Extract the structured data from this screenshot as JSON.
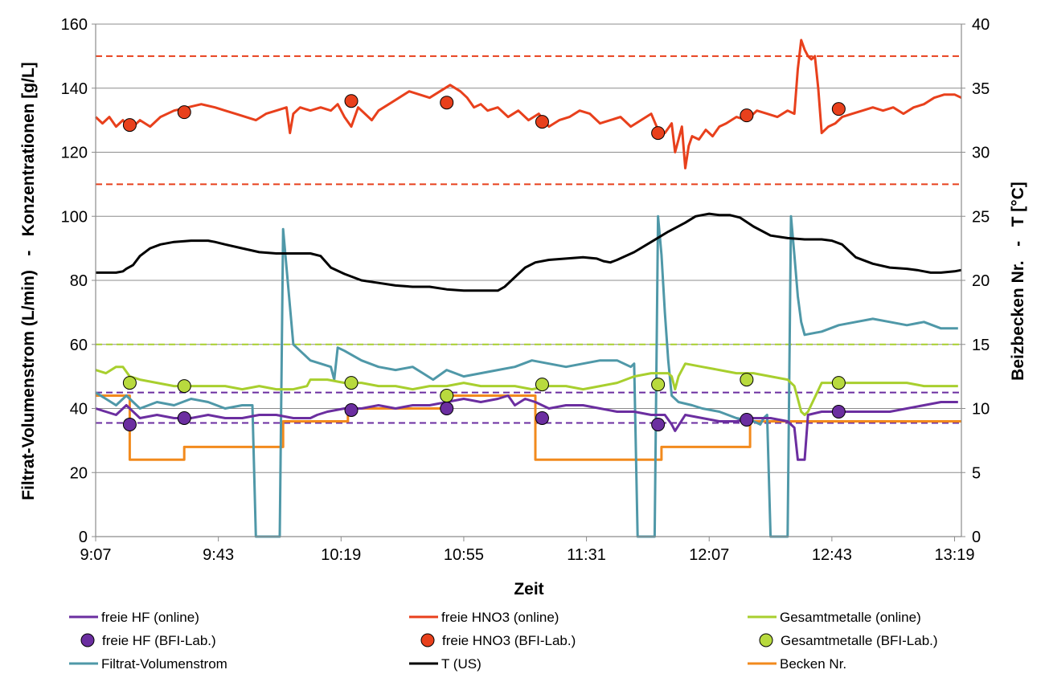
{
  "chart_data": {
    "type": "line",
    "xlabel": "Zeit",
    "ylabel_left": "Filtrat-Volumenstrom (L/min)   -   Konzentrationen [g/L]",
    "ylabel_right": "Beizbecken Nr.   -   T [°C]",
    "x_range_min": [
      547,
      801
    ],
    "x_ticks": [
      "9:07",
      "9:43",
      "10:19",
      "10:55",
      "11:31",
      "12:07",
      "12:43",
      "13:19"
    ],
    "x_tick_min": [
      547,
      583,
      619,
      655,
      691,
      727,
      763,
      799
    ],
    "ylim_left": [
      0,
      160
    ],
    "yticks_left": [
      0,
      20,
      40,
      60,
      80,
      100,
      120,
      140,
      160
    ],
    "ylim_right": [
      0,
      40
    ],
    "yticks_right": [
      0,
      5,
      10,
      15,
      20,
      25,
      30,
      35,
      40
    ],
    "grid": true,
    "legend_position": "bottom",
    "reference_lines": [
      {
        "y": 150,
        "color": "#e8401c",
        "style": "dashed"
      },
      {
        "y": 110,
        "color": "#e8401c",
        "style": "dashed"
      },
      {
        "y": 60,
        "color": "#a8cf2e",
        "style": "dashed"
      },
      {
        "y": 45,
        "color": "#6b2ea0",
        "style": "dashed"
      },
      {
        "y": 35.5,
        "color": "#6b2ea0",
        "style": "dashed"
      }
    ],
    "series": [
      {
        "name": "freie HF (online)",
        "kind": "line",
        "axis": "left",
        "color": "#6b2ea0",
        "x": [
          547,
          550,
          553,
          556,
          560,
          565,
          570,
          575,
          580,
          585,
          590,
          595,
          600,
          605,
          610,
          612,
          615,
          620,
          625,
          630,
          635,
          640,
          645,
          650,
          655,
          660,
          665,
          668,
          670,
          673,
          676,
          680,
          685,
          690,
          695,
          700,
          705,
          710,
          714,
          716,
          717,
          720,
          725,
          730,
          735,
          740,
          745,
          750,
          752,
          753,
          755,
          756,
          760,
          765,
          770,
          775,
          780,
          785,
          790,
          795,
          800
        ],
        "y": [
          40,
          39,
          38,
          41,
          37,
          38,
          37,
          37,
          38,
          37,
          37,
          38,
          38,
          37,
          37,
          38,
          39,
          40,
          40,
          41,
          40,
          41,
          41,
          42,
          43,
          42,
          43,
          44,
          41,
          43,
          42,
          40,
          41,
          41,
          40,
          39,
          39,
          38,
          38,
          35,
          33,
          38,
          37,
          36,
          36,
          37,
          37,
          36,
          34,
          24,
          24,
          38,
          39,
          39,
          39,
          39,
          39,
          40,
          41,
          42,
          42
        ]
      },
      {
        "name": "freie HNO3 (online)",
        "kind": "line",
        "axis": "left",
        "color": "#e8401c",
        "x": [
          547,
          549,
          551,
          553,
          555,
          557,
          560,
          563,
          566,
          570,
          574,
          578,
          582,
          585,
          588,
          591,
          594,
          597,
          600,
          603,
          604,
          605,
          607,
          610,
          613,
          616,
          618,
          620,
          622,
          624,
          626,
          628,
          630,
          633,
          636,
          639,
          642,
          645,
          648,
          651,
          654,
          656,
          658,
          660,
          662,
          665,
          668,
          671,
          674,
          677,
          680,
          683,
          686,
          689,
          692,
          695,
          698,
          701,
          704,
          707,
          710,
          712,
          714,
          716,
          717,
          718,
          719,
          720,
          721,
          722,
          724,
          726,
          728,
          730,
          732,
          735,
          738,
          741,
          744,
          747,
          750,
          752,
          753,
          754,
          755,
          756,
          757,
          758,
          759,
          760,
          762,
          764,
          766,
          769,
          772,
          775,
          778,
          781,
          784,
          787,
          790,
          793,
          796,
          799,
          801
        ],
        "y": [
          131,
          129,
          131,
          128,
          130,
          127,
          130,
          128,
          131,
          133,
          134,
          135,
          134,
          133,
          132,
          131,
          130,
          132,
          133,
          134,
          126,
          132,
          134,
          133,
          134,
          133,
          135,
          131,
          128,
          134,
          132,
          130,
          133,
          135,
          137,
          139,
          138,
          137,
          139,
          141,
          139,
          137,
          134,
          135,
          133,
          134,
          131,
          133,
          130,
          132,
          128,
          130,
          131,
          133,
          132,
          129,
          130,
          131,
          128,
          130,
          132,
          127,
          126,
          129,
          120,
          124,
          128,
          115,
          122,
          125,
          124,
          127,
          125,
          128,
          129,
          131,
          130,
          133,
          132,
          131,
          133,
          132,
          146,
          155,
          152,
          150,
          149,
          150,
          140,
          126,
          128,
          129,
          131,
          132,
          133,
          134,
          133,
          134,
          132,
          134,
          135,
          137,
          138,
          138,
          137
        ]
      },
      {
        "name": "Gesamtmetalle (online)",
        "kind": "line",
        "axis": "left",
        "color": "#a8cf2e",
        "x": [
          547,
          550,
          553,
          555,
          557,
          560,
          565,
          570,
          575,
          580,
          585,
          590,
          595,
          600,
          605,
          609,
          610,
          615,
          620,
          625,
          630,
          635,
          640,
          645,
          650,
          655,
          660,
          665,
          670,
          675,
          680,
          685,
          690,
          695,
          700,
          705,
          710,
          715,
          716,
          717,
          718,
          720,
          725,
          730,
          735,
          740,
          745,
          750,
          751,
          752,
          753,
          754,
          755,
          756,
          760,
          765,
          770,
          775,
          780,
          785,
          790,
          795,
          800
        ],
        "y": [
          52,
          51,
          53,
          53,
          50,
          49,
          48,
          47,
          47,
          47,
          47,
          46,
          47,
          46,
          46,
          47,
          49,
          49,
          48,
          48,
          47,
          47,
          46,
          47,
          47,
          48,
          47,
          47,
          47,
          46,
          47,
          47,
          46,
          47,
          48,
          50,
          51,
          51,
          50,
          46,
          50,
          54,
          53,
          52,
          51,
          51,
          50,
          49,
          48,
          47,
          43,
          39,
          38,
          39,
          48,
          48,
          48,
          48,
          48,
          48,
          47,
          47,
          47
        ]
      },
      {
        "name": "Filtrat-Volumenstrom",
        "kind": "line",
        "axis": "left",
        "color": "#4f98a8",
        "x": [
          547,
          550,
          553,
          556,
          560,
          565,
          570,
          575,
          580,
          585,
          590,
          593,
          594,
          595,
          597,
          598,
          599,
          600,
          601,
          602,
          605,
          608,
          610,
          613,
          616,
          617,
          618,
          620,
          625,
          630,
          635,
          640,
          643,
          646,
          650,
          655,
          660,
          665,
          670,
          675,
          680,
          685,
          690,
          695,
          700,
          704,
          705,
          706,
          707,
          708,
          709,
          710,
          711,
          712,
          713,
          714,
          715,
          716,
          718,
          722,
          725,
          730,
          735,
          740,
          742,
          743,
          744,
          745,
          746,
          747,
          748,
          749,
          750,
          751,
          752,
          753,
          754,
          755,
          760,
          765,
          770,
          775,
          780,
          785,
          790,
          795,
          800
        ],
        "y": [
          45,
          43,
          41,
          44,
          40,
          42,
          41,
          43,
          42,
          40,
          41,
          41,
          0,
          0,
          0,
          0,
          0,
          0,
          0,
          96,
          60,
          57,
          55,
          54,
          53,
          49,
          59,
          58,
          55,
          53,
          52,
          53,
          51,
          49,
          52,
          50,
          51,
          52,
          53,
          55,
          54,
          53,
          54,
          55,
          55,
          53,
          54,
          0,
          0,
          0,
          0,
          0,
          0,
          100,
          88,
          70,
          55,
          44,
          42,
          41,
          40,
          39,
          37,
          36,
          35,
          37,
          38,
          0,
          0,
          0,
          0,
          0,
          0,
          100,
          88,
          75,
          67,
          63,
          64,
          66,
          67,
          68,
          67,
          66,
          67,
          65,
          65
        ]
      },
      {
        "name": "T (US)",
        "kind": "line",
        "axis": "right",
        "color": "#000000",
        "x": [
          547,
          550,
          553,
          555,
          556,
          558,
          560,
          563,
          566,
          570,
          575,
          580,
          582,
          585,
          590,
          595,
          600,
          605,
          610,
          613,
          614,
          616,
          620,
          625,
          630,
          635,
          640,
          645,
          650,
          655,
          660,
          665,
          667,
          669,
          671,
          673,
          676,
          680,
          685,
          690,
          694,
          696,
          698,
          700,
          705,
          710,
          715,
          720,
          723,
          725,
          727,
          730,
          733,
          736,
          740,
          745,
          750,
          755,
          760,
          763,
          766,
          770,
          775,
          780,
          785,
          788,
          790,
          792,
          795,
          799,
          801
        ],
        "y": [
          20.6,
          20.6,
          20.6,
          20.7,
          20.9,
          21.2,
          21.9,
          22.5,
          22.8,
          23.0,
          23.1,
          23.1,
          23.0,
          22.8,
          22.5,
          22.2,
          22.1,
          22.1,
          22.1,
          21.9,
          21.6,
          21.0,
          20.5,
          20.0,
          19.8,
          19.6,
          19.5,
          19.5,
          19.3,
          19.2,
          19.2,
          19.2,
          19.5,
          20.0,
          20.5,
          21.0,
          21.4,
          21.6,
          21.7,
          21.8,
          21.7,
          21.5,
          21.4,
          21.6,
          22.2,
          23.0,
          23.8,
          24.5,
          25.0,
          25.1,
          25.2,
          25.1,
          25.1,
          24.9,
          24.2,
          23.5,
          23.3,
          23.2,
          23.2,
          23.1,
          22.8,
          21.8,
          21.3,
          21.0,
          20.9,
          20.8,
          20.7,
          20.6,
          20.6,
          20.7,
          20.8
        ]
      },
      {
        "name": "Becken Nr.",
        "kind": "step",
        "axis": "right",
        "color": "#f28a1d",
        "x": [
          547,
          557,
          557,
          573,
          573,
          602,
          602,
          621,
          621,
          650,
          650,
          676,
          676,
          713,
          713,
          739,
          739,
          766,
          766,
          801
        ],
        "y": [
          11,
          11,
          6,
          6,
          7,
          7,
          9,
          9,
          10,
          10,
          11,
          11,
          6,
          6,
          7,
          7,
          9,
          9,
          9,
          9
        ]
      },
      {
        "name": "freie HF (BFI-Lab.)",
        "kind": "points",
        "axis": "left",
        "color": "#6b2ea0",
        "x": [
          557,
          573,
          622,
          650,
          678,
          712,
          738,
          765
        ],
        "y": [
          35,
          37,
          39.5,
          40,
          37,
          35,
          36.5,
          39
        ]
      },
      {
        "name": "freie HNO3 (BFI-Lab.)",
        "kind": "points",
        "axis": "left",
        "color": "#e8401c",
        "x": [
          557,
          573,
          622,
          650,
          678,
          712,
          738,
          765
        ],
        "y": [
          128.5,
          132.5,
          136,
          135.5,
          129.5,
          126,
          131.5,
          133.5
        ]
      },
      {
        "name": "Gesamtmetalle (BFI-Lab.)",
        "kind": "points",
        "axis": "left",
        "color": "#b8da3e",
        "x": [
          557,
          573,
          622,
          650,
          678,
          712,
          738,
          765
        ],
        "y": [
          48,
          47,
          48,
          44,
          47.5,
          47.5,
          49,
          48
        ]
      }
    ],
    "legend": [
      [
        "freie HF (online)",
        "freie HNO3 (online)",
        "Gesamtmetalle (online)"
      ],
      [
        "freie HF (BFI-Lab.)",
        "freie HNO3 (BFI-Lab.)",
        "Gesamtmetalle (BFI-Lab.)"
      ],
      [
        "Filtrat-Volumenstrom",
        "T (US)",
        "Becken Nr."
      ]
    ]
  }
}
